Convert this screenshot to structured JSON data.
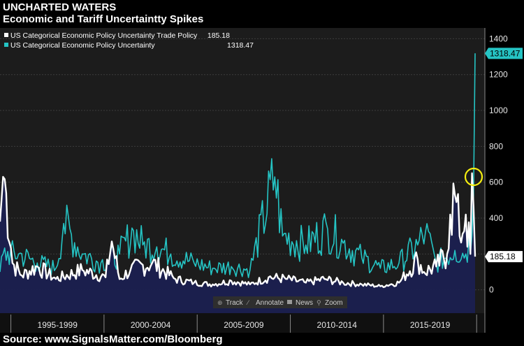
{
  "header": {
    "title": "UNCHARTED WATERS",
    "subtitle": "Economic and Tariff Uncertaintty Spikes"
  },
  "footer": {
    "source": "Source: www.SignalsMatter.com/Bloomberg"
  },
  "toolbar": {
    "track": "Track",
    "annotate": "Annotate",
    "news": "News",
    "zoom": "Zoom"
  },
  "colors": {
    "background": "#1c1c1c",
    "trade_series": "#ffffff",
    "epu_series": "#25c4c4",
    "area_fill": "#1b2050",
    "highlight_circle": "#f5ee10"
  },
  "chart_data": {
    "type": "line",
    "title": "Economic and Tariff Uncertaintty Spikes",
    "ylim": [
      -130,
      1460
    ],
    "yticks": [
      0,
      200,
      400,
      600,
      800,
      1000,
      1200,
      1400
    ],
    "grid": true,
    "legend_position": "top-left",
    "x_period_labels": [
      "1995-1999",
      "2000-2004",
      "2005-2009",
      "2010-2014",
      "2015-2019"
    ],
    "x_range": [
      "1994-01",
      "2019-07"
    ],
    "annotation": "circle around the 2019 spike near 630",
    "series": [
      {
        "name": "US Categorical Economic Policy Uncertainty Trade Policy",
        "last_value": "185.18",
        "keypoints": [
          {
            "x": "1994-01",
            "y": 380
          },
          {
            "x": "1994-03",
            "y": 630
          },
          {
            "x": "1994-05",
            "y": 540
          },
          {
            "x": "1994-09",
            "y": 150
          },
          {
            "x": "1995-03",
            "y": 80
          },
          {
            "x": "1996-01",
            "y": 130
          },
          {
            "x": "1997-01",
            "y": 60
          },
          {
            "x": "1998-06",
            "y": 110
          },
          {
            "x": "1999-09",
            "y": 70
          },
          {
            "x": "2000-01",
            "y": 270
          },
          {
            "x": "2000-06",
            "y": 60
          },
          {
            "x": "2001-01",
            "y": 110
          },
          {
            "x": "2002-03",
            "y": 150
          },
          {
            "x": "2003-06",
            "y": 60
          },
          {
            "x": "2004-06",
            "y": 40
          },
          {
            "x": "2005-06",
            "y": 30
          },
          {
            "x": "2006-06",
            "y": 50
          },
          {
            "x": "2007-06",
            "y": 30
          },
          {
            "x": "2008-06",
            "y": 70
          },
          {
            "x": "2009-06",
            "y": 60
          },
          {
            "x": "2010-06",
            "y": 40
          },
          {
            "x": "2011-06",
            "y": 60
          },
          {
            "x": "2012-06",
            "y": 40
          },
          {
            "x": "2013-06",
            "y": 30
          },
          {
            "x": "2014-06",
            "y": 20
          },
          {
            "x": "2015-06",
            "y": 40
          },
          {
            "x": "2016-06",
            "y": 170
          },
          {
            "x": "2016-10",
            "y": 100
          },
          {
            "x": "2017-06",
            "y": 130
          },
          {
            "x": "2018-01",
            "y": 200
          },
          {
            "x": "2018-03",
            "y": 420
          },
          {
            "x": "2018-06",
            "y": 530
          },
          {
            "x": "2018-09",
            "y": 300
          },
          {
            "x": "2019-01",
            "y": 420
          },
          {
            "x": "2019-04",
            "y": 200
          },
          {
            "x": "2019-05",
            "y": 650
          },
          {
            "x": "2019-07",
            "y": 185.18
          }
        ]
      },
      {
        "name": "US Categorical Economic Policy Uncertainty",
        "last_value": "1318.47",
        "keypoints": [
          {
            "x": "1994-01",
            "y": 100
          },
          {
            "x": "1994-03",
            "y": 200
          },
          {
            "x": "1995-01",
            "y": 200
          },
          {
            "x": "1996-01",
            "y": 150
          },
          {
            "x": "1997-01",
            "y": 120
          },
          {
            "x": "1997-06",
            "y": 370
          },
          {
            "x": "1998-06",
            "y": 200
          },
          {
            "x": "1999-06",
            "y": 150
          },
          {
            "x": "2000-06",
            "y": 200
          },
          {
            "x": "2001-03",
            "y": 330
          },
          {
            "x": "2001-09",
            "y": 250
          },
          {
            "x": "2002-06",
            "y": 240
          },
          {
            "x": "2003-03",
            "y": 200
          },
          {
            "x": "2004-06",
            "y": 150
          },
          {
            "x": "2005-06",
            "y": 120
          },
          {
            "x": "2006-06",
            "y": 130
          },
          {
            "x": "2007-06",
            "y": 110
          },
          {
            "x": "2008-10",
            "y": 630
          },
          {
            "x": "2009-03",
            "y": 300
          },
          {
            "x": "2010-06",
            "y": 250
          },
          {
            "x": "2011-08",
            "y": 340
          },
          {
            "x": "2012-06",
            "y": 260
          },
          {
            "x": "2013-06",
            "y": 180
          },
          {
            "x": "2014-06",
            "y": 120
          },
          {
            "x": "2015-06",
            "y": 150
          },
          {
            "x": "2016-06",
            "y": 250
          },
          {
            "x": "2016-11",
            "y": 320
          },
          {
            "x": "2017-06",
            "y": 150
          },
          {
            "x": "2018-06",
            "y": 220
          },
          {
            "x": "2019-01",
            "y": 200
          },
          {
            "x": "2019-05",
            "y": 300
          },
          {
            "x": "2019-07",
            "y": 1318.47
          }
        ]
      }
    ]
  }
}
